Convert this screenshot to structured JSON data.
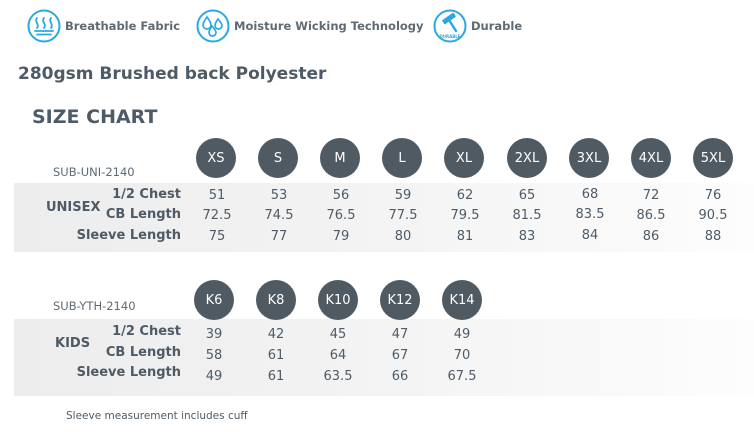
{
  "features": [
    {
      "label": "Breathable Fabric",
      "icon": "breathable-fabric-icon"
    },
    {
      "label": "Moisture Wicking Technology",
      "icon": "moisture-wicking-icon"
    },
    {
      "label": "Durable",
      "icon": "durable-hammer-icon",
      "icon_text": "DURABLE"
    }
  ],
  "colors": {
    "accent": "#2aa9e0",
    "heading": "#4e5b66",
    "circle": "#4f5a63",
    "band": "#efefef"
  },
  "material": "280gsm Brushed back Polyester",
  "chart_title": "SIZE CHART",
  "unisex": {
    "code": "SUB-UNI-2140",
    "group": "UNISEX",
    "sizes": [
      "XS",
      "S",
      "M",
      "L",
      "XL",
      "2XL",
      "3XL",
      "4XL",
      "5XL"
    ],
    "rows": [
      {
        "label": "1/2 Chest",
        "values": [
          "51",
          "53",
          "56",
          "59",
          "62",
          "65",
          "68",
          "72",
          "76"
        ]
      },
      {
        "label": "CB Length",
        "values": [
          "72.5",
          "74.5",
          "76.5",
          "77.5",
          "79.5",
          "81.5",
          "83.5",
          "86.5",
          "90.5"
        ]
      },
      {
        "label": "Sleeve Length",
        "values": [
          "75",
          "77",
          "79",
          "80",
          "81",
          "83",
          "84",
          "86",
          "88"
        ]
      }
    ]
  },
  "kids": {
    "code": "SUB-YTH-2140",
    "group": "KIDS",
    "sizes": [
      "K6",
      "K8",
      "K10",
      "K12",
      "K14"
    ],
    "rows": [
      {
        "label": "1/2 Chest",
        "values": [
          "39",
          "42",
          "45",
          "47",
          "49"
        ]
      },
      {
        "label": "CB Length",
        "values": [
          "58",
          "61",
          "64",
          "67",
          "70"
        ]
      },
      {
        "label": "Sleeve Length",
        "values": [
          "49",
          "61",
          "63.5",
          "66",
          "67.5"
        ]
      }
    ]
  },
  "footnote": "Sleeve measurement includes cuff"
}
